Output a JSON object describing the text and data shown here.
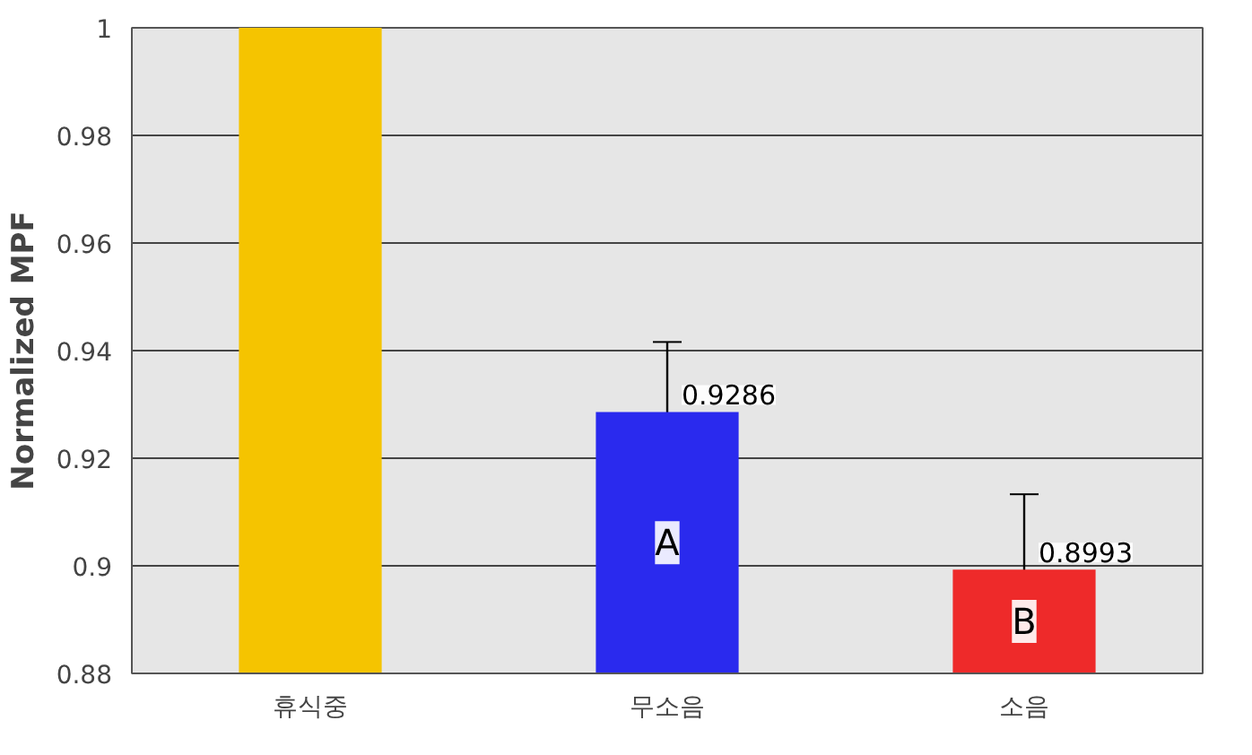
{
  "chart_data": {
    "type": "bar",
    "ylabel": "Normalized MPF",
    "categories": [
      "휴식중",
      "무소음",
      "소음"
    ],
    "values": [
      1,
      0.9286,
      0.8993
    ],
    "colors": [
      "#f5c400",
      "#2a2aee",
      "#ee2a2a"
    ],
    "errors": [
      null,
      0.013,
      0.014
    ],
    "value_labels": [
      null,
      "0.9286",
      "0.8993"
    ],
    "annotations": [
      "A",
      "B"
    ],
    "ylim": [
      0.88,
      1
    ],
    "yticks": [
      0.88,
      0.9,
      0.92,
      0.94,
      0.96,
      0.98,
      1
    ],
    "grid": "y"
  }
}
